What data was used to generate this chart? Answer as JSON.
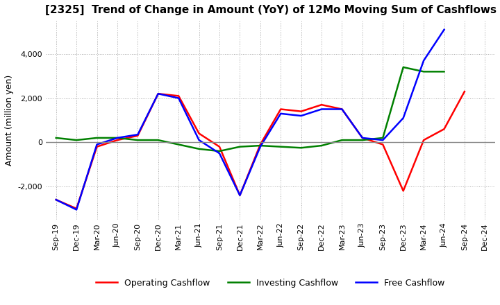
{
  "title": "[2325]  Trend of Change in Amount (YoY) of 12Mo Moving Sum of Cashflows",
  "ylabel": "Amount (million yen)",
  "x_labels": [
    "Sep-19",
    "Dec-19",
    "Mar-20",
    "Jun-20",
    "Sep-20",
    "Dec-20",
    "Mar-21",
    "Jun-21",
    "Sep-21",
    "Dec-21",
    "Mar-22",
    "Jun-22",
    "Sep-22",
    "Dec-22",
    "Mar-23",
    "Jun-23",
    "Sep-23",
    "Dec-23",
    "Mar-24",
    "Jun-24",
    "Sep-24",
    "Dec-24"
  ],
  "operating": [
    -2600,
    -3000,
    -200,
    100,
    300,
    2200,
    2100,
    400,
    -200,
    -2400,
    -100,
    1500,
    1400,
    1700,
    1500,
    200,
    -100,
    -2200,
    100,
    600,
    2300,
    null
  ],
  "investing": [
    200,
    100,
    200,
    200,
    100,
    100,
    -100,
    -300,
    -400,
    -200,
    -150,
    -200,
    -250,
    -150,
    100,
    100,
    200,
    3400,
    3200,
    3200,
    null,
    null
  ],
  "free": [
    -2600,
    -3050,
    -100,
    200,
    350,
    2200,
    2000,
    100,
    -500,
    -2400,
    -200,
    1300,
    1200,
    1500,
    1500,
    200,
    100,
    1100,
    3700,
    5100,
    null,
    null
  ],
  "ylim": [
    -3500,
    5500
  ],
  "yticks": [
    -2000,
    0,
    2000,
    4000
  ],
  "colors": {
    "operating": "#ff0000",
    "investing": "#008000",
    "free": "#0000ff"
  },
  "legend_labels": [
    "Operating Cashflow",
    "Investing Cashflow",
    "Free Cashflow"
  ],
  "grid_color": "#aaaaaa",
  "background_color": "#ffffff"
}
